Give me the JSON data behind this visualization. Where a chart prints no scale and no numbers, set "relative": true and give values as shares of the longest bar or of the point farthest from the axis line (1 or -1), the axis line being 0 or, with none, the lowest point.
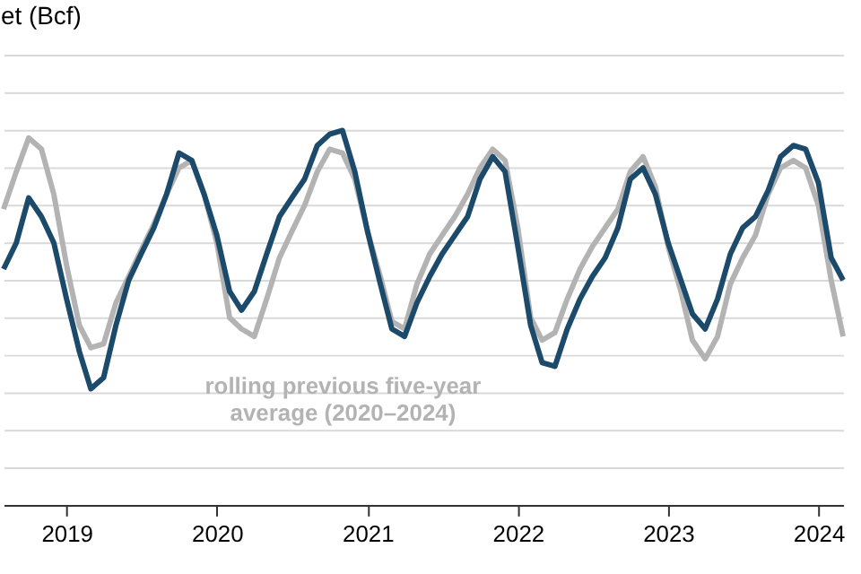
{
  "chart_data": {
    "type": "line",
    "title": "et (Bcf)",
    "relative": true,
    "grid": "y",
    "line_style": "solid",
    "marker": "none",
    "x": [
      "2018-08",
      "2018-09",
      "2018-10",
      "2018-11",
      "2018-12",
      "2019-01",
      "2019-02",
      "2019-03",
      "2019-04",
      "2019-05",
      "2019-06",
      "2019-07",
      "2019-08",
      "2019-09",
      "2019-10",
      "2019-11",
      "2019-12",
      "2020-01",
      "2020-02",
      "2020-03",
      "2020-04",
      "2020-05",
      "2020-06",
      "2020-07",
      "2020-08",
      "2020-09",
      "2020-10",
      "2020-11",
      "2020-12",
      "2021-01",
      "2021-02",
      "2021-03",
      "2021-04",
      "2021-05",
      "2021-06",
      "2021-07",
      "2021-08",
      "2021-09",
      "2021-10",
      "2021-11",
      "2021-12",
      "2022-01",
      "2022-02",
      "2022-03",
      "2022-04",
      "2022-05",
      "2022-06",
      "2022-07",
      "2022-08",
      "2022-09",
      "2022-10",
      "2022-11",
      "2022-12",
      "2023-01",
      "2023-02",
      "2023-03",
      "2023-04",
      "2023-05",
      "2023-06",
      "2023-07",
      "2023-08",
      "2023-09",
      "2023-10",
      "2023-11",
      "2023-12",
      "2024-01",
      "2024-02",
      "2024-03"
    ],
    "xlim": [
      "2018-08",
      "2024-03"
    ],
    "xticks": [
      "2019",
      "2020",
      "2021",
      "2022",
      "2023",
      "2024"
    ],
    "series": [
      {
        "color": "#1b4a6b",
        "values": [
          0.63,
          0.7,
          0.82,
          0.77,
          0.7,
          0.55,
          0.41,
          0.31,
          0.34,
          0.48,
          0.6,
          0.67,
          0.74,
          0.83,
          0.94,
          0.92,
          0.83,
          0.72,
          0.57,
          0.52,
          0.57,
          0.67,
          0.77,
          0.82,
          0.87,
          0.96,
          0.99,
          1,
          0.89,
          0.73,
          0.59,
          0.47,
          0.45,
          0.54,
          0.61,
          0.67,
          0.72,
          0.77,
          0.87,
          0.93,
          0.89,
          0.69,
          0.48,
          0.38,
          0.37,
          0.47,
          0.55,
          0.61,
          0.66,
          0.74,
          0.87,
          0.9,
          0.83,
          0.7,
          0.6,
          0.51,
          0.47,
          0.55,
          0.67,
          0.74,
          0.77,
          0.84,
          0.93,
          0.96,
          0.95,
          0.86,
          0.66,
          0.6
        ]
      },
      {
        "name": "rolling previous five-year\naverage (2020–2024)",
        "color": "#b3b3b3",
        "values": [
          0.79,
          0.89,
          0.98,
          0.95,
          0.83,
          0.64,
          0.48,
          0.42,
          0.43,
          0.54,
          0.61,
          0.68,
          0.75,
          0.83,
          0.9,
          0.92,
          0.83,
          0.7,
          0.5,
          0.47,
          0.45,
          0.55,
          0.66,
          0.73,
          0.8,
          0.89,
          0.95,
          0.94,
          0.87,
          0.73,
          0.61,
          0.49,
          0.47,
          0.59,
          0.67,
          0.72,
          0.77,
          0.83,
          0.9,
          0.95,
          0.92,
          0.74,
          0.5,
          0.44,
          0.46,
          0.55,
          0.63,
          0.69,
          0.74,
          0.79,
          0.89,
          0.93,
          0.85,
          0.69,
          0.57,
          0.44,
          0.39,
          0.45,
          0.59,
          0.66,
          0.72,
          0.83,
          0.9,
          0.92,
          0.9,
          0.8,
          0.6,
          0.45
        ]
      }
    ]
  }
}
